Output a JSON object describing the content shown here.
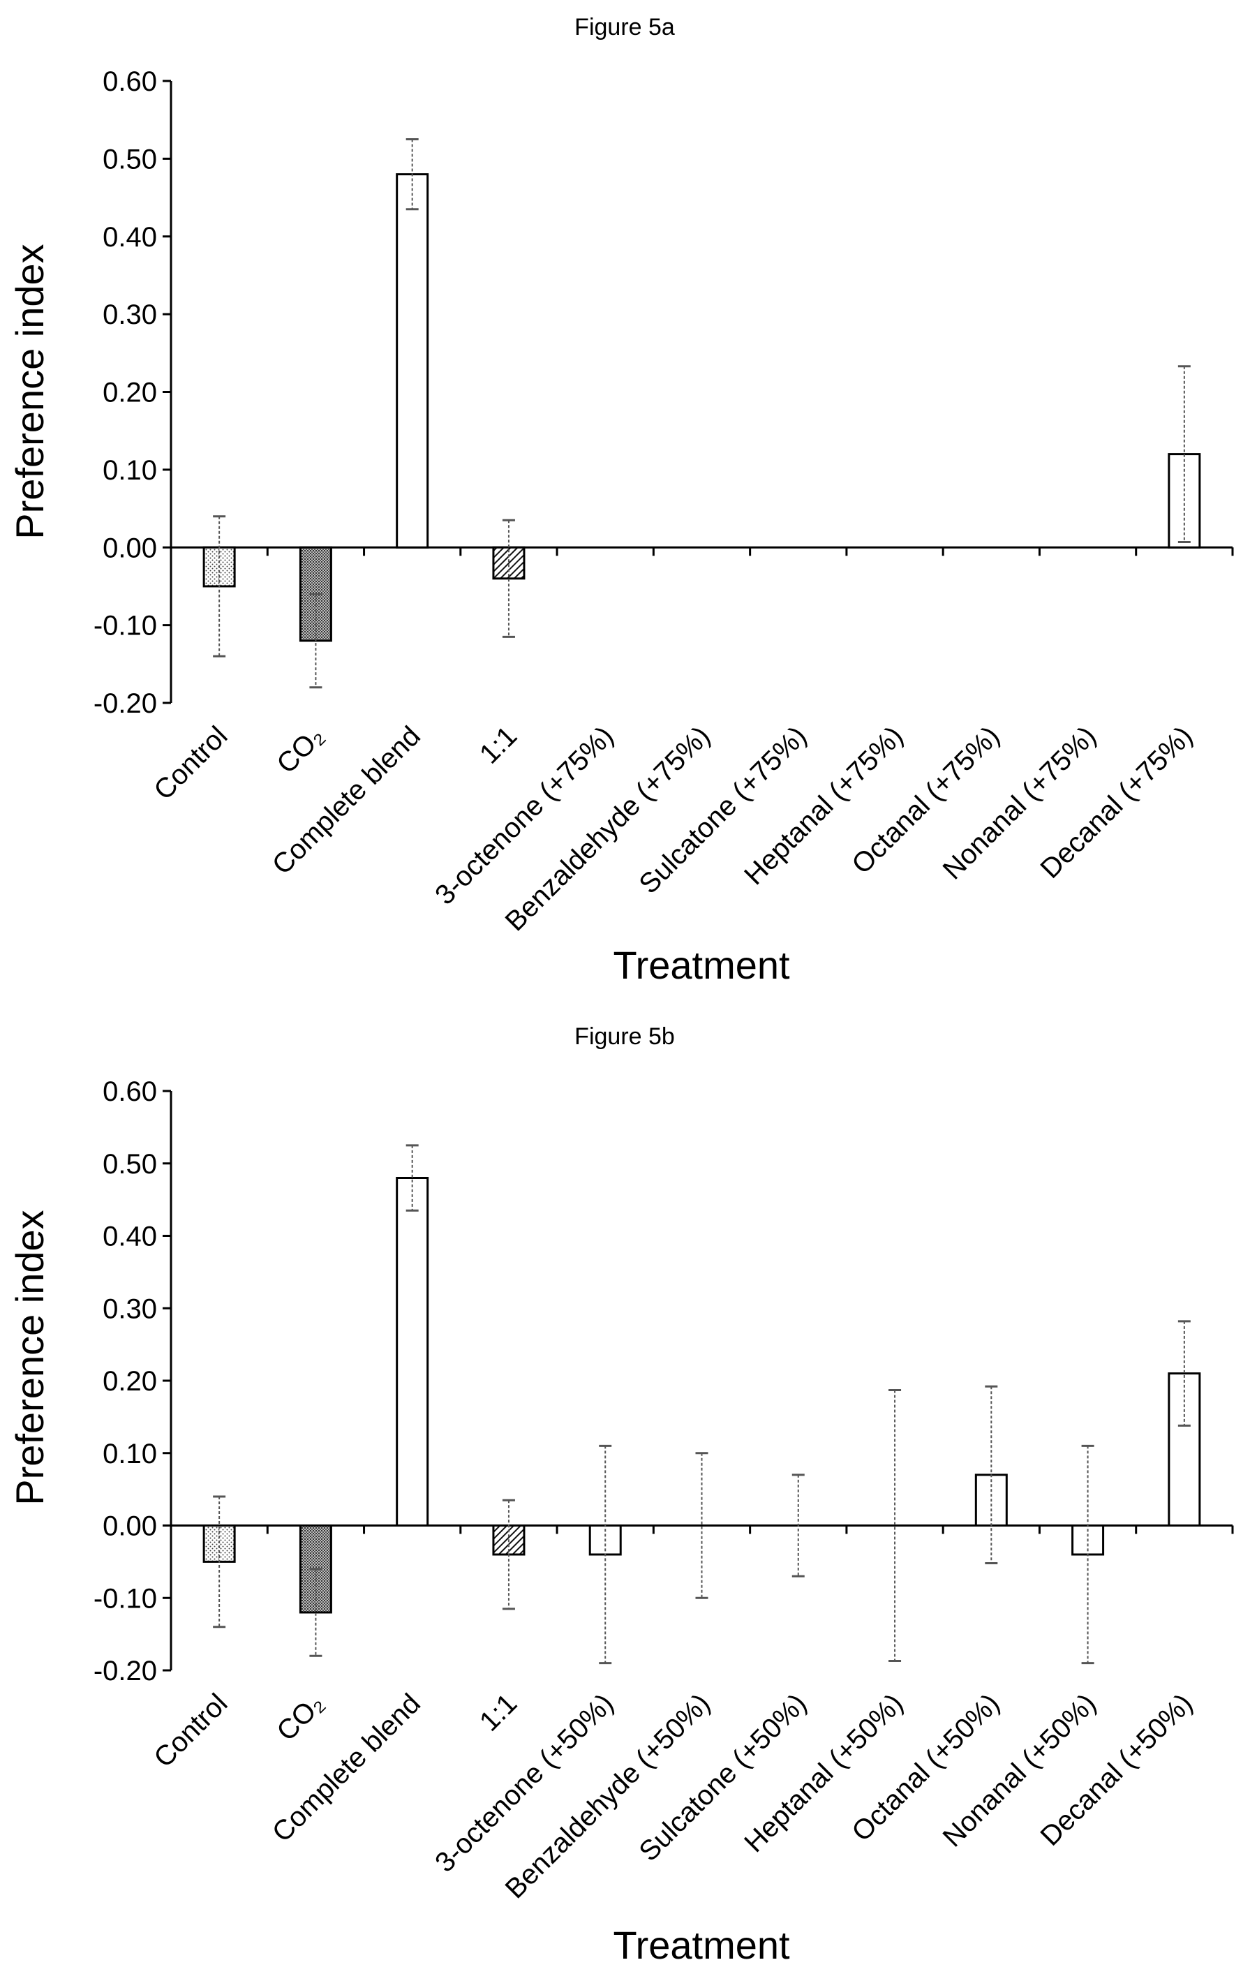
{
  "chart_data": [
    {
      "type": "bar",
      "title": "Figure 5a",
      "xlabel": "Treatment",
      "ylabel": "Preference index",
      "ylim": [
        -0.2,
        0.6
      ],
      "yticks": [
        "0.60",
        "0.50",
        "0.40",
        "0.30",
        "0.20",
        "0.10",
        "0.00",
        "-0.10",
        "-0.20"
      ],
      "categories": [
        "Control",
        "CO₂",
        "Complete blend",
        "1:1",
        "3-octenone (+75%)",
        "Benzaldehyde (+75%)",
        "Sulcatone (+75%)",
        "Heptanal (+75%)",
        "Octanal (+75%)",
        "Nonanal (+75%)",
        "Decanal (+75%)"
      ],
      "values": [
        -0.05,
        -0.12,
        0.48,
        -0.04,
        0.0,
        0.0,
        0.0,
        0.0,
        0.0,
        0.0,
        0.12
      ],
      "errors": [
        0.09,
        0.06,
        0.045,
        0.075,
        0,
        0,
        0,
        0,
        0,
        0,
        0.113
      ],
      "patterns": [
        "dots",
        "dense",
        "white",
        "hatch",
        "white",
        "white",
        "white",
        "white",
        "white",
        "white",
        "white"
      ],
      "grid": false
    },
    {
      "type": "bar",
      "title": "Figure 5b",
      "xlabel": "Treatment",
      "ylabel": "Preference index",
      "ylim": [
        -0.2,
        0.6
      ],
      "yticks": [
        "0.60",
        "0.50",
        "0.40",
        "0.30",
        "0.20",
        "0.10",
        "0.00",
        "-0.10",
        "-0.20"
      ],
      "categories": [
        "Control",
        "CO₂",
        "Complete blend",
        "1:1",
        "3-octenone (+50%)",
        "Benzaldehyde (+50%)",
        "Sulcatone (+50%)",
        "Heptanal (+50%)",
        "Octanal (+50%)",
        "Nonanal (+50%)",
        "Decanal (+50%)"
      ],
      "values": [
        -0.05,
        -0.12,
        0.48,
        -0.04,
        -0.04,
        0.0,
        0.0,
        0.0,
        0.07,
        -0.04,
        0.21
      ],
      "errors": [
        0.09,
        0.06,
        0.045,
        0.075,
        0.15,
        0.1,
        0.07,
        0.187,
        0.122,
        0.15,
        0.072
      ],
      "patterns": [
        "dots",
        "dense",
        "white",
        "hatch",
        "white",
        "white",
        "white",
        "white",
        "white",
        "white",
        "white"
      ],
      "grid": false
    }
  ]
}
